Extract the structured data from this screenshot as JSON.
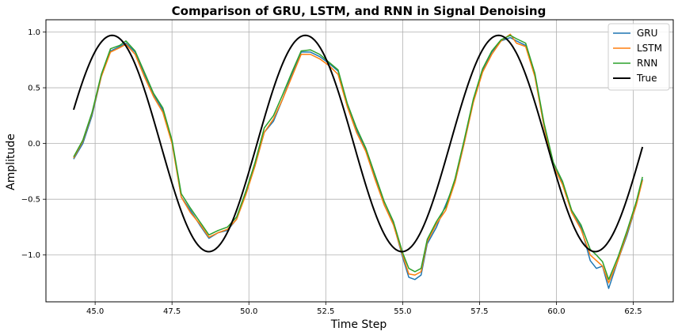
{
  "chart_data": {
    "type": "line",
    "title": "Comparison of GRU, LSTM, and RNN in Signal Denoising",
    "xlabel": "Time Step",
    "ylabel": "Amplitude",
    "xlim": [
      43.4,
      63.8
    ],
    "ylim": [
      -1.42,
      1.11
    ],
    "xticks": [
      45.0,
      47.5,
      50.0,
      52.5,
      55.0,
      57.5,
      60.0,
      62.5
    ],
    "xtick_labels": [
      "45.0",
      "47.5",
      "50.0",
      "52.5",
      "55.0",
      "57.5",
      "60.0",
      "62.5"
    ],
    "yticks": [
      -1.0,
      -0.5,
      0.0,
      0.5,
      1.0
    ],
    "ytick_labels": [
      "−1.0",
      "−0.5",
      "0.0",
      "0.5",
      "1.0"
    ],
    "grid": true,
    "legend_position": "top-right",
    "series": [
      {
        "name": "GRU",
        "color": "#1f77b4",
        "x": [
          44.3,
          44.6,
          44.9,
          45.2,
          45.5,
          45.8,
          46.0,
          46.3,
          46.6,
          46.9,
          47.2,
          47.5,
          47.8,
          48.1,
          48.4,
          48.7,
          49.0,
          49.3,
          49.6,
          49.9,
          50.2,
          50.5,
          50.8,
          51.1,
          51.4,
          51.7,
          52.0,
          52.3,
          52.6,
          52.9,
          53.2,
          53.5,
          53.8,
          54.1,
          54.4,
          54.7,
          55.0,
          55.2,
          55.4,
          55.6,
          55.8,
          56.1,
          56.4,
          56.7,
          57.0,
          57.3,
          57.6,
          57.9,
          58.2,
          58.5,
          58.7,
          59.0,
          59.3,
          59.6,
          59.9,
          60.2,
          60.5,
          60.8,
          61.1,
          61.3,
          61.5,
          61.7,
          62.0,
          62.3,
          62.6,
          62.8
        ],
        "y": [
          -0.14,
          0.0,
          0.25,
          0.6,
          0.83,
          0.87,
          0.9,
          0.82,
          0.62,
          0.44,
          0.3,
          0.02,
          -0.48,
          -0.6,
          -0.73,
          -0.85,
          -0.8,
          -0.78,
          -0.68,
          -0.45,
          -0.2,
          0.1,
          0.2,
          0.4,
          0.62,
          0.82,
          0.82,
          0.78,
          0.72,
          0.65,
          0.35,
          0.12,
          -0.05,
          -0.3,
          -0.55,
          -0.72,
          -1.02,
          -1.2,
          -1.22,
          -1.18,
          -0.9,
          -0.75,
          -0.55,
          -0.35,
          0.0,
          0.38,
          0.65,
          0.82,
          0.92,
          0.95,
          0.92,
          0.88,
          0.62,
          0.15,
          -0.2,
          -0.35,
          -0.62,
          -0.75,
          -1.05,
          -1.12,
          -1.1,
          -1.3,
          -1.05,
          -0.82,
          -0.55,
          -0.32
        ]
      },
      {
        "name": "LSTM",
        "color": "#ff7f0e",
        "x": [
          44.3,
          44.6,
          44.9,
          45.2,
          45.5,
          45.8,
          46.0,
          46.3,
          46.6,
          46.9,
          47.2,
          47.5,
          47.8,
          48.1,
          48.4,
          48.7,
          49.0,
          49.3,
          49.6,
          49.9,
          50.2,
          50.5,
          50.8,
          51.1,
          51.4,
          51.7,
          52.0,
          52.3,
          52.6,
          52.9,
          53.2,
          53.5,
          53.8,
          54.1,
          54.4,
          54.7,
          55.0,
          55.2,
          55.4,
          55.6,
          55.8,
          56.1,
          56.4,
          56.7,
          57.0,
          57.3,
          57.6,
          57.9,
          58.2,
          58.5,
          58.7,
          59.0,
          59.3,
          59.6,
          59.9,
          60.2,
          60.5,
          60.8,
          61.1,
          61.3,
          61.5,
          61.7,
          62.0,
          62.3,
          62.6,
          62.8
        ],
        "y": [
          -0.13,
          0.02,
          0.27,
          0.6,
          0.82,
          0.86,
          0.89,
          0.8,
          0.6,
          0.42,
          0.28,
          0.0,
          -0.48,
          -0.62,
          -0.72,
          -0.84,
          -0.8,
          -0.77,
          -0.68,
          -0.46,
          -0.2,
          0.1,
          0.22,
          0.4,
          0.6,
          0.8,
          0.8,
          0.76,
          0.7,
          0.62,
          0.33,
          0.1,
          -0.07,
          -0.32,
          -0.55,
          -0.73,
          -1.0,
          -1.17,
          -1.18,
          -1.15,
          -0.88,
          -0.72,
          -0.6,
          -0.35,
          0.0,
          0.37,
          0.64,
          0.8,
          0.92,
          0.98,
          0.9,
          0.87,
          0.6,
          0.15,
          -0.2,
          -0.37,
          -0.62,
          -0.77,
          -1.0,
          -1.05,
          -1.1,
          -1.25,
          -1.05,
          -0.8,
          -0.55,
          -0.33
        ]
      },
      {
        "name": "RNN",
        "color": "#2ca02c",
        "x": [
          44.3,
          44.6,
          44.9,
          45.2,
          45.5,
          45.8,
          46.0,
          46.3,
          46.6,
          46.9,
          47.2,
          47.5,
          47.8,
          48.1,
          48.4,
          48.7,
          49.0,
          49.3,
          49.6,
          49.9,
          50.2,
          50.5,
          50.8,
          51.1,
          51.4,
          51.7,
          52.0,
          52.3,
          52.6,
          52.9,
          53.2,
          53.5,
          53.8,
          54.1,
          54.4,
          54.7,
          55.0,
          55.2,
          55.4,
          55.6,
          55.8,
          56.1,
          56.4,
          56.7,
          57.0,
          57.3,
          57.6,
          57.9,
          58.2,
          58.5,
          58.7,
          59.0,
          59.3,
          59.6,
          59.9,
          60.2,
          60.5,
          60.8,
          61.1,
          61.3,
          61.5,
          61.7,
          62.0,
          62.3,
          62.6,
          62.8
        ],
        "y": [
          -0.12,
          0.03,
          0.28,
          0.62,
          0.85,
          0.88,
          0.92,
          0.83,
          0.64,
          0.45,
          0.32,
          0.03,
          -0.45,
          -0.58,
          -0.7,
          -0.82,
          -0.78,
          -0.75,
          -0.66,
          -0.43,
          -0.17,
          0.14,
          0.25,
          0.44,
          0.64,
          0.83,
          0.84,
          0.8,
          0.73,
          0.66,
          0.36,
          0.14,
          -0.04,
          -0.28,
          -0.52,
          -0.7,
          -0.98,
          -1.12,
          -1.15,
          -1.12,
          -0.86,
          -0.7,
          -0.57,
          -0.32,
          0.03,
          0.4,
          0.67,
          0.83,
          0.93,
          0.97,
          0.94,
          0.9,
          0.63,
          0.18,
          -0.17,
          -0.34,
          -0.6,
          -0.73,
          -0.95,
          -1.0,
          -1.06,
          -1.22,
          -1.02,
          -0.78,
          -0.52,
          -0.3
        ]
      },
      {
        "name": "True",
        "color": "#000000",
        "function": "0.97*sin(x)",
        "x_range": [
          44.3,
          62.8
        ]
      }
    ]
  }
}
